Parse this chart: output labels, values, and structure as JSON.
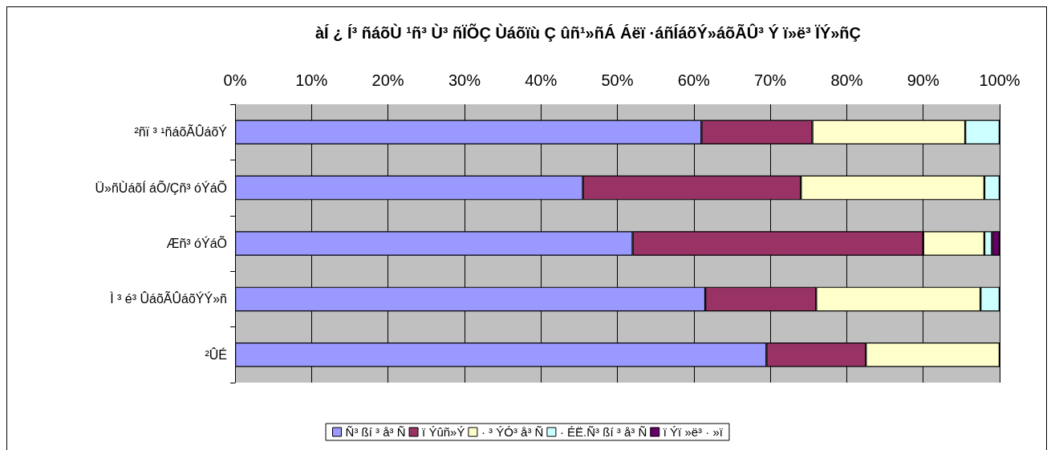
{
  "chart_data": {
    "type": "bar",
    "orientation": "horizontal",
    "stacked": true,
    "title": "àÍ ¿ Í³ ñáõÙ ¹ñ³ Ù³ ñÏÕÇ Ùáõïù Ç ûñ¹»ñÁ Áëï ·áñÍáõÝ»áõÃÛ³ Ý ï»ë³ ÏÝ»ñÇ",
    "categories": [
      "²ñï ³ ¹ñáõÃÛáõÝ",
      "Ü»ñÙáõÍ áÕ/Çñ³ óÝáÕ",
      "Æñ³ óÝáÕ",
      "Ì ³ é³ ÛáõÃÛáõÝÝ»ñ",
      "²ÛÉ"
    ],
    "series": [
      {
        "name": "Ñ³ ßí ³ å³ Ñ",
        "color": "#9999ff",
        "values": [
          61,
          45.5,
          52,
          61.5,
          69.5
        ]
      },
      {
        "name": "ï Ýûñ»Ý",
        "color": "#993366",
        "values": [
          14.5,
          28.5,
          38,
          14.5,
          13
        ]
      },
      {
        "name": "· ³ ÝÓ³ å³ Ñ",
        "color": "#ffffcc",
        "values": [
          20,
          24,
          8,
          21.5,
          17.5
        ]
      },
      {
        "name": "· ÉË.Ñ³ ßí ³ å³ Ñ",
        "color": "#ccffff",
        "values": [
          4.5,
          2,
          1,
          2.5,
          0
        ]
      },
      {
        "name": "ï Ýï »ë³ · »ï",
        "color": "#660066",
        "values": [
          0,
          0,
          1,
          0,
          0
        ]
      }
    ],
    "xlim": [
      0,
      100
    ],
    "xticks": [
      {
        "value": 0,
        "label": "0%"
      },
      {
        "value": 10,
        "label": "10%"
      },
      {
        "value": 20,
        "label": "20%"
      },
      {
        "value": 30,
        "label": "30%"
      },
      {
        "value": 40,
        "label": "40%"
      },
      {
        "value": 50,
        "label": "50%"
      },
      {
        "value": 60,
        "label": "60%"
      },
      {
        "value": 70,
        "label": "70%"
      },
      {
        "value": 80,
        "label": "80%"
      },
      {
        "value": 90,
        "label": "90%"
      },
      {
        "value": 100,
        "label": "100%"
      }
    ],
    "grid": "x",
    "legend": "bottom"
  }
}
